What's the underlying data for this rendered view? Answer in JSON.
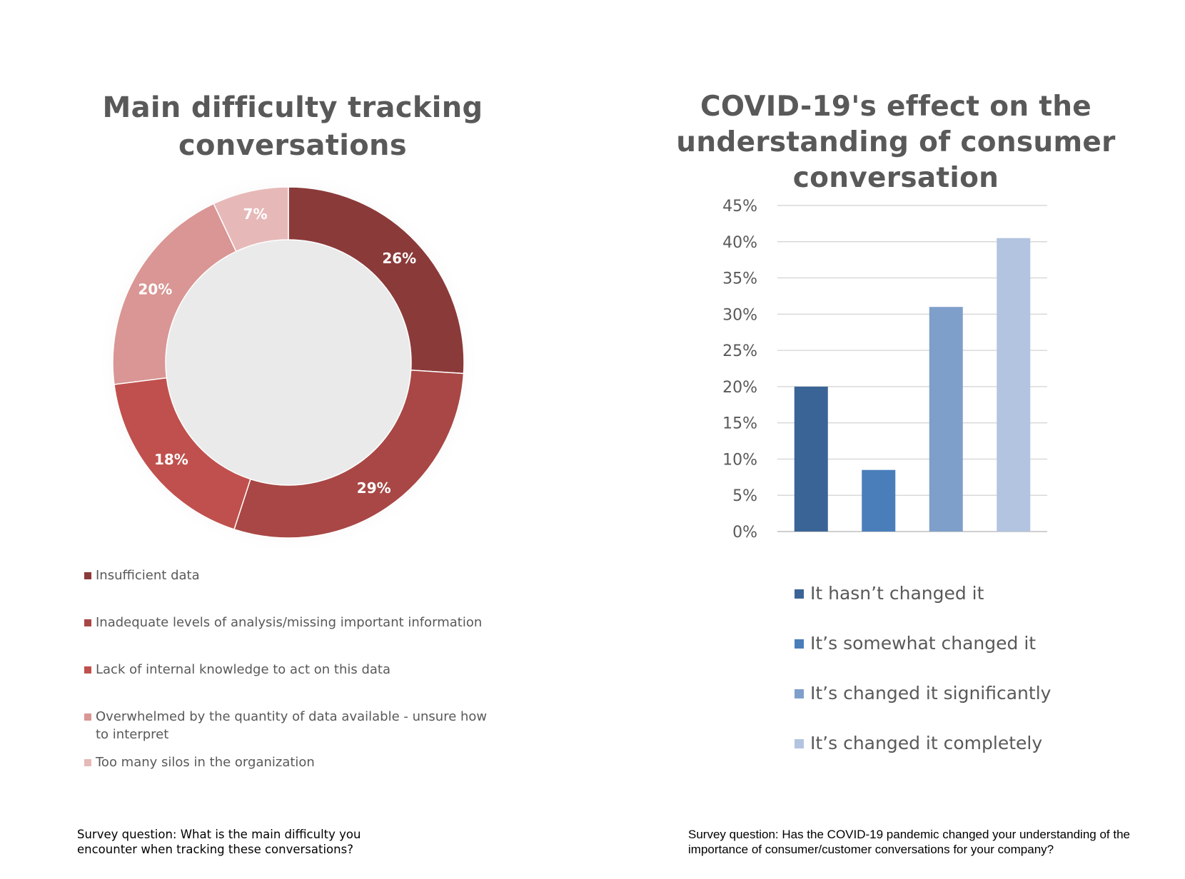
{
  "chart_data": [
    {
      "type": "pie",
      "title": "Main difficulty tracking conversations",
      "categories": [
        "Insufficient data",
        "Inadequate levels of analysis/missing important information",
        "Lack of internal knowledge to act on this data",
        "Overwhelmed by the quantity of data available - unsure how to interpret",
        "Too many silos in the organization"
      ],
      "values": [
        26,
        29,
        18,
        20,
        7
      ],
      "data_labels": [
        "26%",
        "29%",
        "18%",
        "20%",
        "7%"
      ],
      "colors": [
        "#8b3a3a",
        "#a84745",
        "#c0504d",
        "#d99694",
        "#e6b9b8"
      ],
      "donut": true,
      "legend_position": "bottom",
      "caption": "Survey question: What is the main difficulty you encounter when tracking these conversations?"
    },
    {
      "type": "bar",
      "title": "COVID-19's effect on the understanding of consumer conversation",
      "categories": [
        "It hasn’t changed it",
        "It’s somewhat changed it",
        "It’s changed it significantly",
        "It’s changed it completely"
      ],
      "values": [
        20,
        8.5,
        31,
        40.5
      ],
      "colors": [
        "#3a6496",
        "#4a7ebb",
        "#7f9fcb",
        "#b3c4e0"
      ],
      "ylim": [
        0,
        45
      ],
      "yticks": [
        "0%",
        "5%",
        "10%",
        "15%",
        "20%",
        "25%",
        "30%",
        "35%",
        "40%",
        "45%"
      ],
      "grid": true,
      "legend_position": "bottom",
      "caption": "Survey question: Has the COVID-19 pandemic changed your understanding of the importance of consumer/customer conversations for your company?"
    }
  ]
}
